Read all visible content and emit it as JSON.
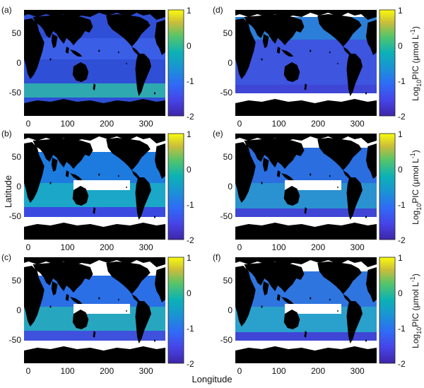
{
  "figure": {
    "xlabel": "Longitude",
    "ylabel": "Latitude",
    "colorbar_label_main": "Log",
    "colorbar_label_sub": "10",
    "colorbar_label_rest": "PIC (μmol L",
    "colorbar_label_exp": "-1",
    "colorbar_label_close": ")",
    "colorbar_ticks": [
      "1",
      "0",
      "-1",
      "-2"
    ],
    "x_ticks": [
      "0",
      "100",
      "200",
      "300"
    ],
    "y_ticks": [
      "50",
      "0",
      "-50"
    ],
    "colormap": "parula",
    "colors": {
      "land": "#000000",
      "missing": "#ffffff",
      "low": "#3e26a8",
      "mid": "#2db7a3",
      "high": "#f9fb0e"
    }
  },
  "panels": [
    {
      "id": "a",
      "label": "(a)"
    },
    {
      "id": "b",
      "label": "(b)"
    },
    {
      "id": "c",
      "label": "(c)"
    },
    {
      "id": "d",
      "label": "(d)"
    },
    {
      "id": "e",
      "label": "(e)"
    },
    {
      "id": "f",
      "label": "(f)"
    }
  ]
}
